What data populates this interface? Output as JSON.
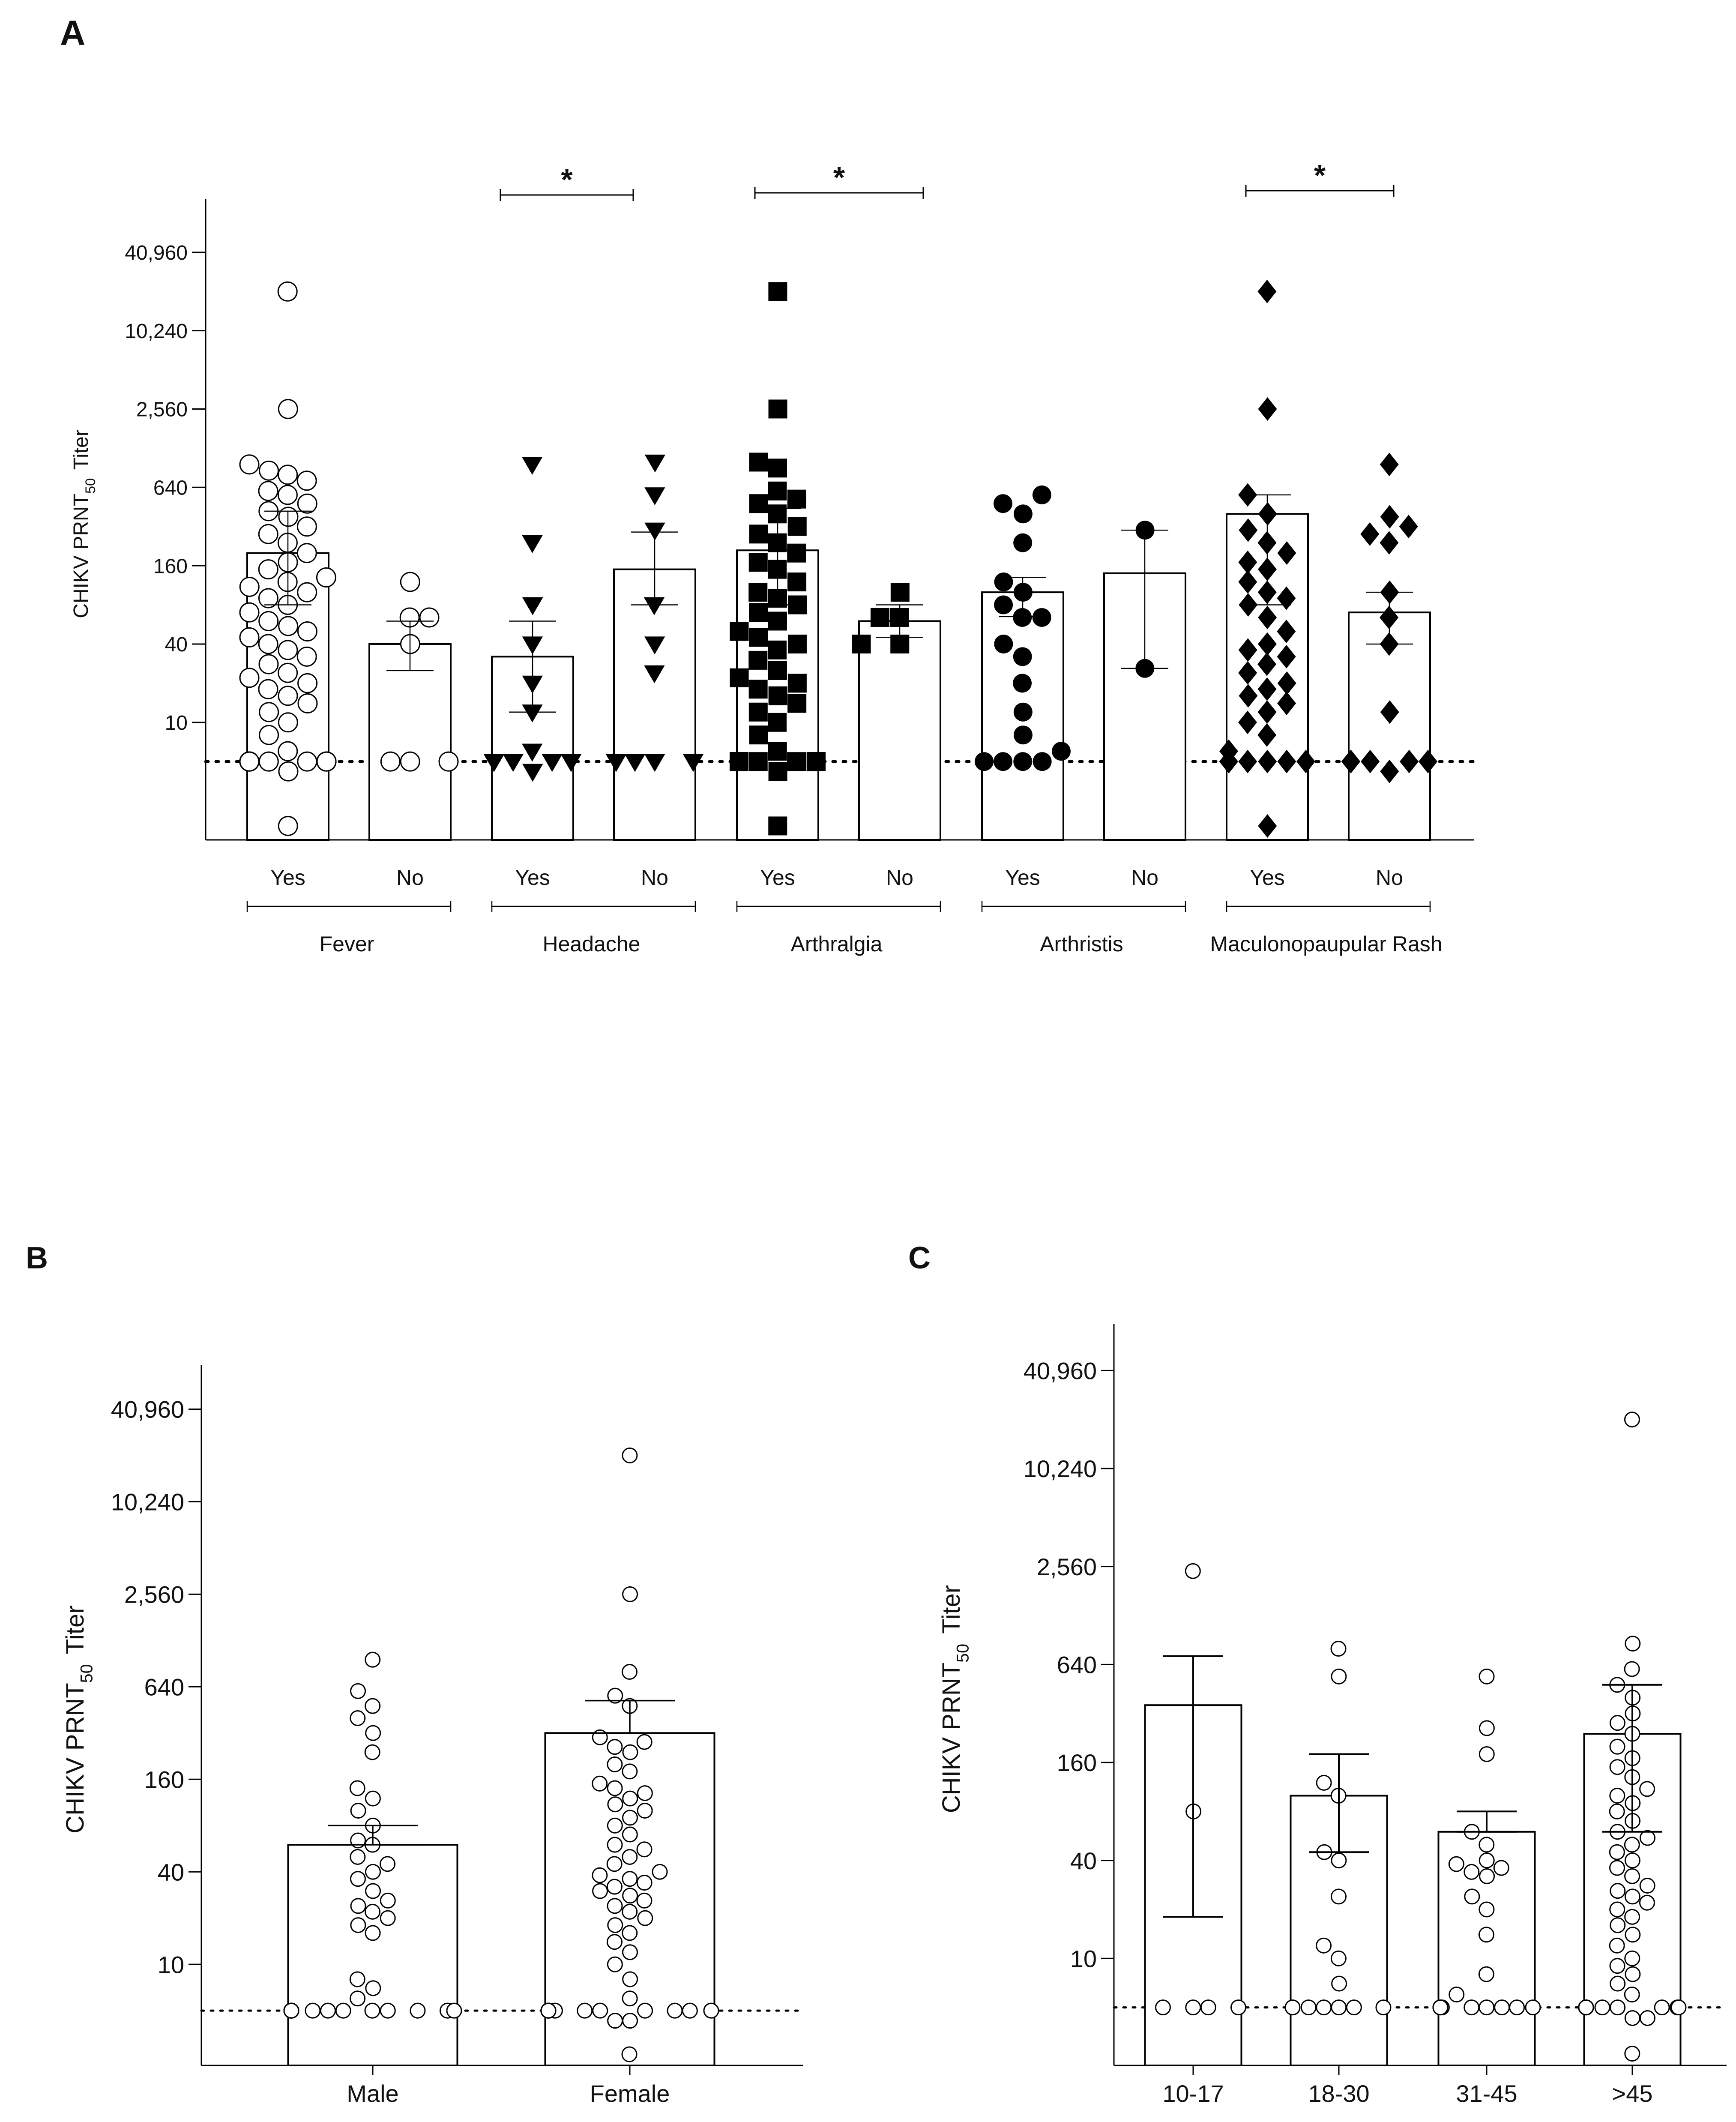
{
  "figure": {
    "panel_labels": [
      "A",
      "B",
      "C"
    ]
  },
  "chart_data": [
    {
      "panel": "A",
      "type": "bar",
      "ylabel_main": "CHIKV PRNT",
      "ylabel_sub": "50",
      "ylabel_tail": "Titer",
      "yscale": "log2",
      "ylim": [
        1.25,
        90000
      ],
      "yticks": [
        10,
        40,
        160,
        640,
        2560,
        10240,
        40960
      ],
      "ytick_labels": [
        "10",
        "40",
        "160",
        "640",
        "2,560",
        "10,240",
        "40,960"
      ],
      "detection_limit": 5,
      "groups": [
        {
          "name": "Fever",
          "categories": [
            {
              "label": "Yes",
              "mean": 200,
              "sem_low": 80,
              "sem_high": 420,
              "marker": "circle-open",
              "points": [
                20480,
                2560,
                960,
                860,
                800,
                720,
                600,
                560,
                480,
                420,
                380,
                320,
                280,
                240,
                200,
                170,
                150,
                130,
                120,
                110,
                100,
                90,
                80,
                70,
                60,
                55,
                50,
                45,
                40,
                36,
                32,
                28,
                24,
                22,
                20,
                18,
                16,
                14,
                12,
                10,
                8,
                6,
                5,
                5,
                5,
                5,
                5,
                5,
                5,
                5,
                5,
                5,
                5,
                5,
                5,
                5,
                4.2,
                1.6
              ]
            },
            {
              "label": "No",
              "mean": 40,
              "sem_low": 25,
              "sem_high": 60,
              "marker": "circle-open",
              "points": [
                120,
                64,
                64,
                40,
                5,
                5,
                5
              ]
            }
          ]
        },
        {
          "name": "Headache",
          "categories": [
            {
              "label": "Yes",
              "mean": 32,
              "sem_low": 12,
              "sem_high": 60,
              "marker": "triangle-down",
              "points": [
                960,
                240,
                80,
                40,
                20,
                12,
                6,
                5,
                5,
                5,
                5,
                5,
                5,
                5,
                5,
                5,
                5,
                5,
                4.2
              ]
            },
            {
              "label": "No",
              "mean": 150,
              "sem_low": 80,
              "sem_high": 290,
              "marker": "triangle-down",
              "points": [
                1000,
                560,
                300,
                80,
                40,
                24,
                5,
                5,
                5,
                5,
                5
              ]
            }
          ]
        },
        {
          "name": "Arthralgia",
          "categories": [
            {
              "label": "Yes",
              "mean": 210,
              "sem_low": 80,
              "sem_high": 440,
              "marker": "square",
              "points": [
                20480,
                2560,
                1000,
                900,
                600,
                520,
                480,
                400,
                320,
                280,
                240,
                200,
                170,
                150,
                120,
                100,
                90,
                80,
                70,
                60,
                50,
                45,
                40,
                36,
                30,
                25,
                22,
                20,
                18,
                16,
                14,
                12,
                10,
                8,
                6,
                5,
                5,
                5,
                5,
                5,
                5,
                5,
                5,
                5,
                5,
                5,
                5,
                5,
                5,
                5,
                4.2,
                1.6
              ]
            },
            {
              "label": "No",
              "mean": 60,
              "sem_low": 45,
              "sem_high": 80,
              "marker": "square",
              "points": [
                100,
                64,
                64,
                40,
                40
              ]
            }
          ]
        },
        {
          "name": "Arthristis",
          "categories": [
            {
              "label": "Yes",
              "mean": 100,
              "sem_low": 65,
              "sem_high": 130,
              "marker": "circle",
              "points": [
                560,
                480,
                400,
                240,
                120,
                100,
                80,
                64,
                64,
                40,
                32,
                20,
                12,
                8,
                6,
                5,
                5,
                5,
                5
              ]
            },
            {
              "label": "No",
              "mean": 140,
              "sem_low": 26,
              "sem_high": 300,
              "marker": "circle",
              "points": [
                300,
                26
              ]
            }
          ]
        },
        {
          "name": "Maculonopaupular Rash",
          "categories": [
            {
              "label": "Yes",
              "mean": 400,
              "sem_low": 80,
              "sem_high": 560,
              "marker": "diamond",
              "points": [
                20480,
                2560,
                560,
                400,
                300,
                240,
                200,
                170,
                150,
                120,
                100,
                90,
                80,
                64,
                50,
                40,
                36,
                32,
                28,
                24,
                20,
                18,
                16,
                14,
                12,
                10,
                8,
                6,
                5,
                5,
                5,
                5,
                5,
                5,
                5,
                5,
                5,
                5,
                5,
                1.6
              ]
            },
            {
              "label": "No",
              "mean": 70,
              "sem_low": 40,
              "sem_high": 100,
              "marker": "diamond",
              "points": [
                960,
                380,
                320,
                280,
                240,
                100,
                64,
                40,
                12,
                5,
                5,
                5,
                5,
                5,
                5,
                5,
                4.2
              ]
            }
          ]
        }
      ],
      "significance": [
        {
          "group": "Headache",
          "label": "*"
        },
        {
          "group": "Arthralgia",
          "label": "*"
        },
        {
          "group": "Maculonopaupular Rash",
          "label": "*"
        }
      ]
    },
    {
      "panel": "B",
      "type": "bar",
      "ylabel_main": "CHIKV PRNT",
      "ylabel_sub": "50",
      "ylabel_tail": "Titer",
      "yscale": "log2",
      "ylim": [
        2.2,
        70000
      ],
      "yticks": [
        10,
        40,
        160,
        640,
        2560,
        10240,
        40960
      ],
      "ytick_labels": [
        "10",
        "40",
        "160",
        "640",
        "2,560",
        "10,240",
        "40,960"
      ],
      "detection_limit": 5,
      "categories": [
        {
          "label": "Male",
          "mean": 60,
          "sem_low": 60,
          "sem_high": 80,
          "points": [
            960,
            600,
            480,
            400,
            320,
            240,
            140,
            120,
            100,
            80,
            64,
            60,
            50,
            45,
            40,
            36,
            30,
            26,
            24,
            22,
            20,
            18,
            16,
            8,
            7,
            6,
            5,
            5,
            5,
            5,
            5,
            5,
            5,
            5,
            5,
            5,
            5,
            5,
            5,
            5,
            5,
            5,
            5,
            5
          ]
        },
        {
          "label": "Female",
          "mean": 320,
          "sem_low": 320,
          "sem_high": 520,
          "points": [
            20480,
            2560,
            800,
            560,
            480,
            300,
            280,
            260,
            240,
            200,
            180,
            150,
            140,
            130,
            120,
            110,
            100,
            90,
            80,
            70,
            60,
            56,
            50,
            45,
            40,
            38,
            36,
            34,
            32,
            30,
            28,
            26,
            24,
            22,
            20,
            18,
            16,
            14,
            12,
            10,
            8,
            6,
            5,
            5,
            5,
            5,
            5,
            5,
            5,
            5,
            5,
            5,
            5,
            5,
            5,
            5,
            5,
            5,
            5,
            5,
            5,
            4.3,
            4.3,
            2.6
          ]
        }
      ]
    },
    {
      "panel": "C",
      "type": "bar",
      "ylabel_main": "CHIKV PRNT",
      "ylabel_sub": "50",
      "ylabel_tail": "Titer",
      "yscale": "log2",
      "ylim": [
        2.2,
        70000
      ],
      "yticks": [
        10,
        40,
        160,
        640,
        2560,
        10240,
        40960
      ],
      "ytick_labels": [
        "10",
        "40",
        "160",
        "640",
        "2,560",
        "10,240",
        "40,960"
      ],
      "detection_limit": 5,
      "categories": [
        {
          "label": "10-17",
          "mean": 360,
          "sem_low": 18,
          "sem_high": 720,
          "points": [
            2400,
            80,
            5,
            5,
            5,
            5
          ]
        },
        {
          "label": "18-30",
          "mean": 100,
          "sem_low": 45,
          "sem_high": 180,
          "points": [
            800,
            540,
            120,
            100,
            45,
            40,
            24,
            12,
            10,
            7,
            5,
            5,
            5,
            5,
            5,
            5,
            5
          ]
        },
        {
          "label": "31-45",
          "mean": 60,
          "sem_low": 60,
          "sem_high": 80,
          "points": [
            540,
            260,
            180,
            60,
            50,
            40,
            38,
            36,
            34,
            32,
            24,
            20,
            14,
            8,
            6,
            5,
            5,
            5,
            5,
            5,
            5,
            5,
            5,
            5
          ]
        },
        {
          "label": ">45",
          "mean": 240,
          "sem_low": 60,
          "sem_high": 480,
          "points": [
            20480,
            860,
            600,
            480,
            400,
            320,
            280,
            240,
            200,
            170,
            150,
            130,
            110,
            100,
            90,
            80,
            70,
            60,
            55,
            50,
            45,
            40,
            36,
            32,
            28,
            26,
            24,
            22,
            20,
            18,
            16,
            14,
            12,
            10,
            9,
            8,
            7,
            6,
            5,
            5,
            5,
            5,
            5,
            5,
            5,
            5,
            5,
            5,
            5,
            5,
            5,
            5,
            5,
            5,
            5,
            5,
            4.3,
            4.3,
            2.6
          ]
        }
      ]
    }
  ]
}
